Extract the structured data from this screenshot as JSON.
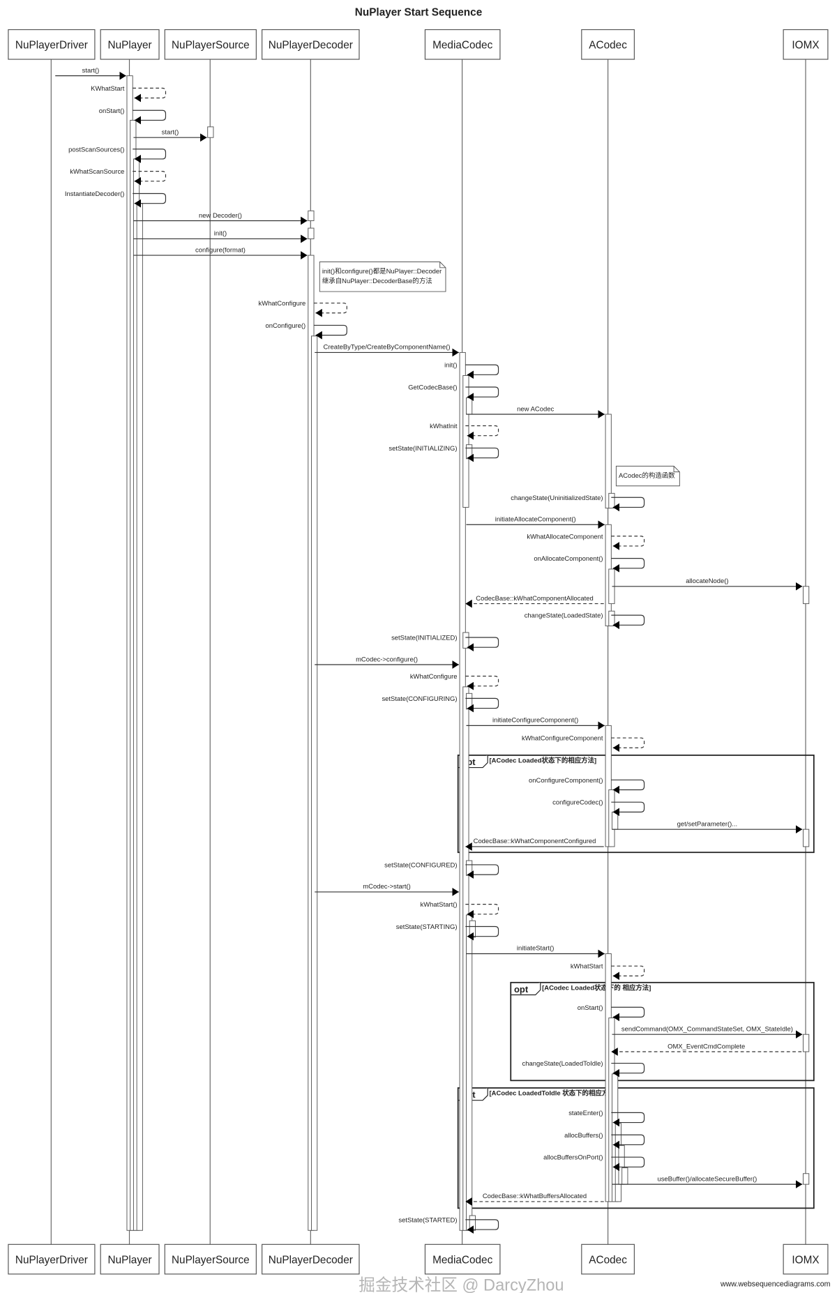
{
  "title": "NuPlayer Start Sequence",
  "participants": [
    "NuPlayerDriver",
    "NuPlayer",
    "NuPlayerSource",
    "NuPlayerDecoder",
    "MediaCodec",
    "ACodec",
    "IOMX"
  ],
  "messages": [
    {
      "from": "NuPlayerDriver",
      "to": "NuPlayer",
      "label": "start()",
      "kind": "sync"
    },
    {
      "from": "NuPlayer",
      "to": "NuPlayer",
      "label": "KWhatStart",
      "kind": "self-async"
    },
    {
      "from": "NuPlayer",
      "to": "NuPlayer",
      "label": "onStart()",
      "kind": "self"
    },
    {
      "from": "NuPlayer",
      "to": "NuPlayerSource",
      "label": "start()",
      "kind": "sync"
    },
    {
      "from": "NuPlayer",
      "to": "NuPlayer",
      "label": "postScanSources()",
      "kind": "self"
    },
    {
      "from": "NuPlayer",
      "to": "NuPlayer",
      "label": "kWhatScanSource",
      "kind": "self-async"
    },
    {
      "from": "NuPlayer",
      "to": "NuPlayer",
      "label": "InstantiateDecoder()",
      "kind": "self"
    },
    {
      "from": "NuPlayer",
      "to": "NuPlayerDecoder",
      "label": "new Decoder()",
      "kind": "sync"
    },
    {
      "from": "NuPlayer",
      "to": "NuPlayerDecoder",
      "label": "init()",
      "kind": "sync"
    },
    {
      "from": "NuPlayer",
      "to": "NuPlayerDecoder",
      "label": "configure(format)",
      "kind": "sync"
    },
    {
      "from": "NuPlayerDecoder",
      "to": "NuPlayerDecoder",
      "label": "kWhatConfigure",
      "kind": "self-async"
    },
    {
      "from": "NuPlayerDecoder",
      "to": "NuPlayerDecoder",
      "label": "onConfigure()",
      "kind": "self"
    },
    {
      "from": "NuPlayerDecoder",
      "to": "MediaCodec",
      "label": "CreateByType/CreateByComponentName()",
      "kind": "sync"
    },
    {
      "from": "MediaCodec",
      "to": "MediaCodec",
      "label": "init()",
      "kind": "self"
    },
    {
      "from": "MediaCodec",
      "to": "MediaCodec",
      "label": "GetCodecBase()",
      "kind": "self"
    },
    {
      "from": "MediaCodec",
      "to": "ACodec",
      "label": "new ACodec",
      "kind": "sync"
    },
    {
      "from": "MediaCodec",
      "to": "MediaCodec",
      "label": "kWhatInit",
      "kind": "self-async"
    },
    {
      "from": "MediaCodec",
      "to": "MediaCodec",
      "label": "setState(INITIALIZING)",
      "kind": "self"
    },
    {
      "from": "ACodec",
      "to": "ACodec",
      "label": "changeState(UninitializedState)",
      "kind": "self"
    },
    {
      "from": "MediaCodec",
      "to": "ACodec",
      "label": "initiateAllocateComponent()",
      "kind": "sync"
    },
    {
      "from": "ACodec",
      "to": "ACodec",
      "label": "kWhatAllocateComponent",
      "kind": "self-async"
    },
    {
      "from": "ACodec",
      "to": "ACodec",
      "label": "onAllocateComponent()",
      "kind": "self"
    },
    {
      "from": "ACodec",
      "to": "IOMX",
      "label": "allocateNode()",
      "kind": "sync"
    },
    {
      "from": "ACodec",
      "to": "MediaCodec",
      "label": "CodecBase::kWhatComponentAllocated",
      "kind": "return"
    },
    {
      "from": "ACodec",
      "to": "ACodec",
      "label": "changeState(LoadedState)",
      "kind": "self"
    },
    {
      "from": "MediaCodec",
      "to": "MediaCodec",
      "label": "setState(INITIALIZED)",
      "kind": "self"
    },
    {
      "from": "NuPlayerDecoder",
      "to": "MediaCodec",
      "label": "mCodec->configure()",
      "kind": "sync"
    },
    {
      "from": "MediaCodec",
      "to": "MediaCodec",
      "label": "kWhatConfigure",
      "kind": "self-async"
    },
    {
      "from": "MediaCodec",
      "to": "MediaCodec",
      "label": "setState(CONFIGURING)",
      "kind": "self"
    },
    {
      "from": "MediaCodec",
      "to": "ACodec",
      "label": "initiateConfigureComponent()",
      "kind": "sync"
    },
    {
      "from": "ACodec",
      "to": "ACodec",
      "label": "kWhatConfigureComponent",
      "kind": "self-async"
    },
    {
      "from": "ACodec",
      "to": "ACodec",
      "label": "onConfigureComponent()",
      "kind": "self"
    },
    {
      "from": "ACodec",
      "to": "ACodec",
      "label": "configureCodec()",
      "kind": "self"
    },
    {
      "from": "ACodec",
      "to": "IOMX",
      "label": "get/setParameter()...",
      "kind": "sync"
    },
    {
      "from": "ACodec",
      "to": "MediaCodec",
      "label": "CodecBase::kWhatComponentConfigured",
      "kind": "sync"
    },
    {
      "from": "MediaCodec",
      "to": "MediaCodec",
      "label": "setState(CONFIGURED)",
      "kind": "self"
    },
    {
      "from": "NuPlayerDecoder",
      "to": "MediaCodec",
      "label": "mCodec->start()",
      "kind": "sync"
    },
    {
      "from": "MediaCodec",
      "to": "MediaCodec",
      "label": "kWhatStart()",
      "kind": "self-async"
    },
    {
      "from": "MediaCodec",
      "to": "MediaCodec",
      "label": "setState(STARTING)",
      "kind": "self"
    },
    {
      "from": "MediaCodec",
      "to": "ACodec",
      "label": "initiateStart()",
      "kind": "sync"
    },
    {
      "from": "ACodec",
      "to": "ACodec",
      "label": "kWhatStart",
      "kind": "self-async"
    },
    {
      "from": "ACodec",
      "to": "ACodec",
      "label": "onStart()",
      "kind": "self"
    },
    {
      "from": "ACodec",
      "to": "IOMX",
      "label": "sendCommand(OMX_CommandStateSet, OMX_StateIdle)",
      "kind": "sync"
    },
    {
      "from": "IOMX",
      "to": "ACodec",
      "label": "OMX_EventCmdComplete",
      "kind": "return"
    },
    {
      "from": "ACodec",
      "to": "ACodec",
      "label": "changeState(LoadedToIdle)",
      "kind": "self"
    },
    {
      "from": "ACodec",
      "to": "ACodec",
      "label": "stateEnter()",
      "kind": "self"
    },
    {
      "from": "ACodec",
      "to": "ACodec",
      "label": "allocBuffers()",
      "kind": "self"
    },
    {
      "from": "ACodec",
      "to": "ACodec",
      "label": "allocBuffersOnPort()",
      "kind": "self"
    },
    {
      "from": "ACodec",
      "to": "IOMX",
      "label": "useBuffer()/allocateSecureBuffer()",
      "kind": "sync"
    },
    {
      "from": "ACodec",
      "to": "MediaCodec",
      "label": "CodecBase::kWhatBuffersAllocated",
      "kind": "return"
    },
    {
      "from": "MediaCodec",
      "to": "MediaCodec",
      "label": "setState(STARTED)",
      "kind": "self"
    }
  ],
  "notes": [
    {
      "lines": [
        "init()和configure()都是NuPlayer::Decoder",
        "继承自NuPlayer::DecoderBase的方法"
      ]
    },
    {
      "lines": [
        "ACodec的构造函数"
      ]
    }
  ],
  "fragments": [
    {
      "tag": "opt",
      "condition": "[ACodec Loaded状态下的相应方法]"
    },
    {
      "tag": "opt",
      "condition": "[ACodec Loaded状态下的 相应方法]"
    },
    {
      "tag": "opt",
      "condition": "[ACodec LoadedToIdle 状态下的相应方法]"
    }
  ],
  "footer": "www.websequencediagrams.com",
  "watermark": "掘金技术社区 @ DarcyZhou"
}
